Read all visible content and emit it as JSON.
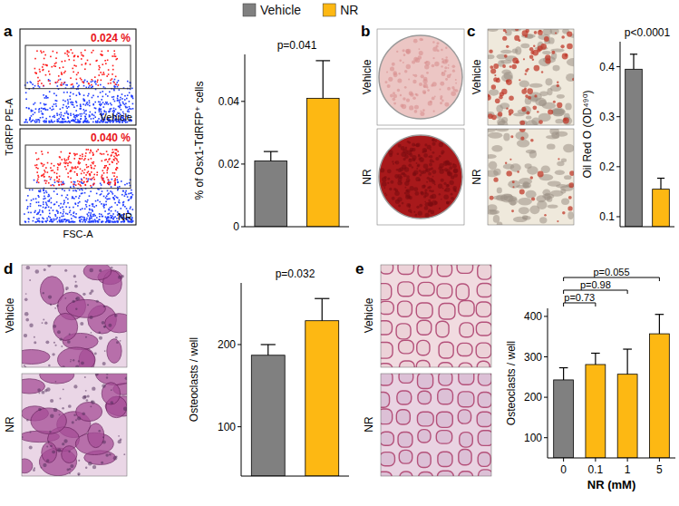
{
  "figure": {
    "legend": [
      {
        "name": "Vehicle",
        "color": "#808080"
      },
      {
        "name": "NR",
        "color": "#fdb813"
      }
    ],
    "panels": [
      {
        "letter": "a",
        "image_labels": [
          "Vehicle",
          "NR"
        ],
        "gate_labels": [
          "0.024 %",
          "0.040 %"
        ],
        "x_label": "FSC-A",
        "y_label": "TdRFP PE-A"
      },
      {
        "letter": "b",
        "image_labels": [
          "Vehicle",
          "NR"
        ]
      },
      {
        "letter": "c",
        "image_labels": [
          "Vehicle",
          "NR"
        ]
      },
      {
        "letter": "d",
        "image_labels": [
          "Vehicle",
          "NR"
        ]
      },
      {
        "letter": "e",
        "image_labels": [
          "Vehicle",
          "NR"
        ]
      }
    ]
  },
  "chart_data": [
    {
      "type": "bar",
      "y_label": "% of Osx1-TdRFP⁺ cells",
      "categories": [
        null,
        null
      ],
      "values": [
        0.021,
        0.041
      ],
      "errors": [
        0.003,
        0.012
      ],
      "colors": [
        "#808080",
        "#fdb813"
      ],
      "ylim": [
        0,
        0.055
      ],
      "yticks": [
        0,
        0.02,
        0.04
      ],
      "annotations": [
        {
          "text": "p=0.041"
        }
      ]
    },
    {
      "type": "bar",
      "y_label": "Oil Red O (OD⁴⁹⁰)",
      "categories": [
        null,
        null
      ],
      "values": [
        0.395,
        0.155
      ],
      "errors": [
        0.03,
        0.022
      ],
      "colors": [
        "#808080",
        "#fdb813"
      ],
      "ylim": [
        0.08,
        0.45
      ],
      "yticks": [
        0.1,
        0.2,
        0.3,
        0.4
      ],
      "annotations": [
        {
          "text": "p<0.0001"
        }
      ]
    },
    {
      "type": "bar",
      "y_label": "Osteoclasts / well",
      "categories": [
        null,
        null
      ],
      "values": [
        187,
        229
      ],
      "errors": [
        13,
        27
      ],
      "colors": [
        "#808080",
        "#fdb813"
      ],
      "ylim": [
        40,
        275
      ],
      "yticks": [
        100,
        200
      ],
      "annotations": [
        {
          "text": "p=0.032"
        }
      ]
    },
    {
      "type": "bar",
      "y_label": "Osteoclasts / well",
      "x_label": "NR (mM)",
      "categories": [
        "0",
        "0.1",
        "1",
        "5"
      ],
      "values": [
        243,
        281,
        257,
        357
      ],
      "errors": [
        30,
        28,
        62,
        48
      ],
      "colors": [
        "#808080",
        "#fdb813",
        "#fdb813",
        "#fdb813"
      ],
      "ylim": [
        50,
        420
      ],
      "yticks": [
        100,
        200,
        300,
        400
      ],
      "annotations": [
        {
          "text": "p=0.73",
          "between": [
            "0",
            "0.1"
          ]
        },
        {
          "text": "p=0.98",
          "between": [
            "0",
            "1"
          ]
        },
        {
          "text": "p=0.055",
          "between": [
            "0",
            "5"
          ]
        }
      ]
    }
  ]
}
